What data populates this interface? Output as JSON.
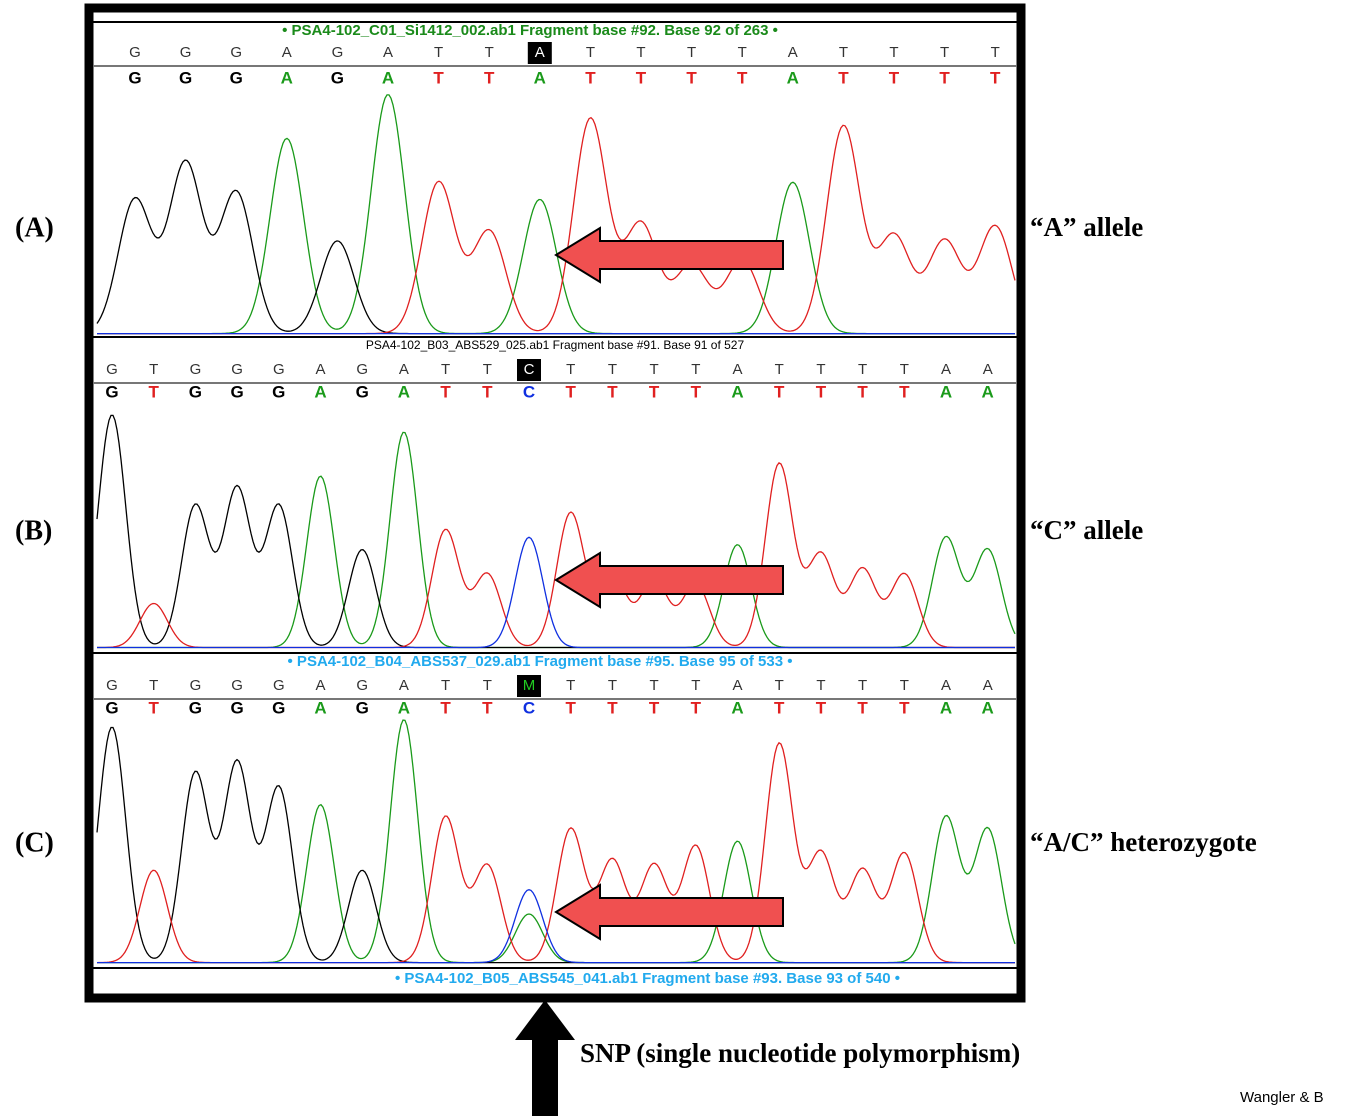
{
  "panels": [
    {
      "label": "(A)",
      "header": "• PSA4-102_C01_Si1412_002.ab1 Fragment base #92. Base 92 of 263 •",
      "bases": [
        "G",
        "G",
        "G",
        "A",
        "G",
        "A",
        "T",
        "T",
        "A",
        "T",
        "T",
        "T",
        "T",
        "A",
        "T",
        "T",
        "T",
        "T"
      ],
      "called": [
        "G",
        "G",
        "G",
        "A",
        "G",
        "A",
        "T",
        "T",
        "A",
        "T",
        "T",
        "T",
        "T",
        "A",
        "T",
        "T",
        "T",
        "T"
      ],
      "allele": "“A” allele"
    },
    {
      "label": "(B)",
      "header": "PSA4-102_B03_ABS529_025.ab1 Fragment base #91. Base 91 of 527",
      "bases": [
        "G",
        "T",
        "G",
        "G",
        "G",
        "A",
        "G",
        "A",
        "T",
        "T",
        "C",
        "T",
        "T",
        "T",
        "T",
        "A",
        "T",
        "T",
        "T",
        "T",
        "A",
        "A"
      ],
      "called": [
        "G",
        "T",
        "G",
        "G",
        "G",
        "A",
        "G",
        "A",
        "T",
        "T",
        "C",
        "T",
        "T",
        "T",
        "T",
        "A",
        "T",
        "T",
        "T",
        "T",
        "A",
        "A"
      ],
      "allele": "“C” allele"
    },
    {
      "label": "(C)",
      "header": "• PSA4-102_B04_ABS537_029.ab1 Fragment base #95. Base 95 of 533 •",
      "bases": [
        "G",
        "T",
        "G",
        "G",
        "G",
        "A",
        "G",
        "A",
        "T",
        "T",
        "M",
        "T",
        "T",
        "T",
        "T",
        "A",
        "T",
        "T",
        "T",
        "T",
        "A",
        "A"
      ],
      "called": [
        "G",
        "T",
        "G",
        "G",
        "G",
        "A",
        "G",
        "A",
        "T",
        "T",
        "C",
        "T",
        "T",
        "T",
        "T",
        "A",
        "T",
        "T",
        "T",
        "T",
        "A",
        "A"
      ],
      "allele": "“A/C” heterozygote"
    }
  ],
  "footer": "• PSA4-102_B05_ABS545_041.ab1 Fragment base #93. Base 93 of 540 •",
  "snp": "SNP (single nucleotide polymorphism)",
  "credit": "Wangler & B"
}
